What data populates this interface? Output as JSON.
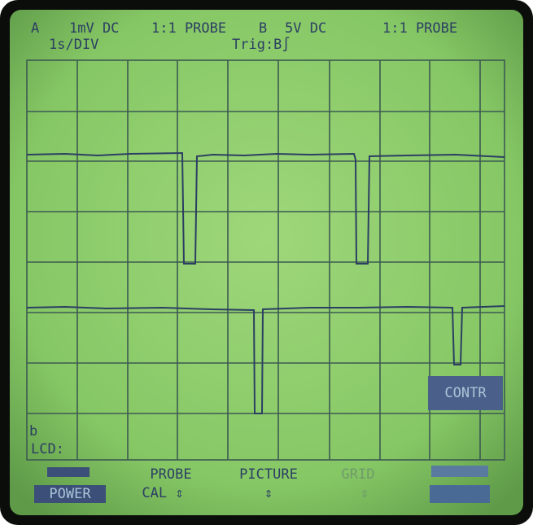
{
  "header": {
    "line1": [
      "A",
      "1mV DC",
      "1:1 PROBE",
      "B",
      "5V DC",
      "1:1 PROBE"
    ],
    "timebase": "1s/DIV",
    "trigger": "Trig:B∫"
  },
  "side_menu": {
    "selected": "CONTR"
  },
  "status": {
    "channel": "b",
    "mode": "LCD:"
  },
  "softkeys": [
    {
      "label": "POWER"
    },
    {
      "top": "PROBE",
      "label": "CAL ⇕"
    },
    {
      "top": "PICTURE",
      "label": "⇕"
    },
    {
      "top": "GRID",
      "label": "⇕"
    }
  ]
}
